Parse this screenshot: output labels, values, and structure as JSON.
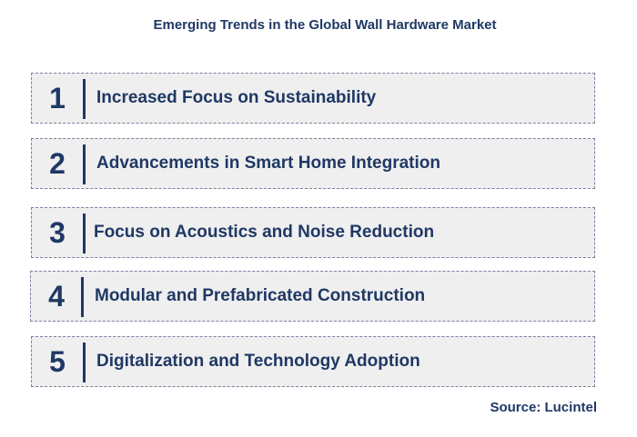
{
  "title": "Emerging Trends in the Global Wall Hardware Market",
  "trends": [
    {
      "number": "1",
      "label": "Increased Focus on Sustainability"
    },
    {
      "number": "2",
      "label": "Advancements in Smart Home Integration"
    },
    {
      "number": "3",
      "label": "Focus on Acoustics and Noise Reduction"
    },
    {
      "number": "4",
      "label": "Modular and Prefabricated Construction"
    },
    {
      "number": "5",
      "label": "Digitalization and Technology Adoption"
    }
  ],
  "source": "Source: Lucintel",
  "colors": {
    "text": "#1f3864",
    "box": "#efefef",
    "border": "#7f7f9f"
  }
}
